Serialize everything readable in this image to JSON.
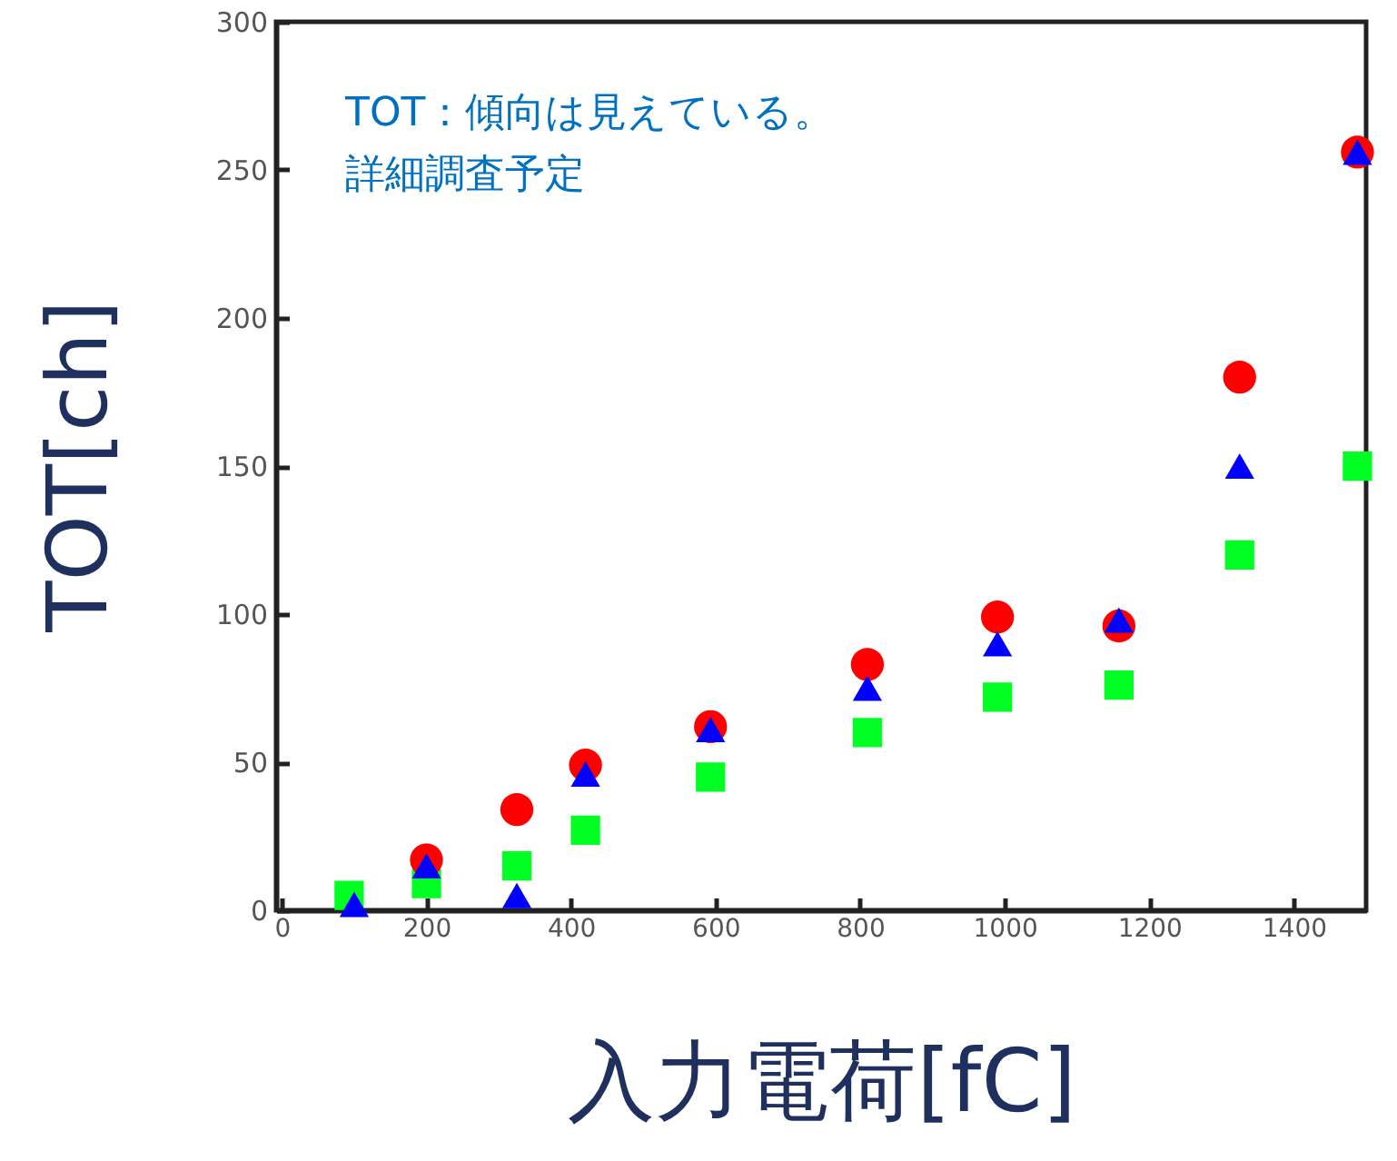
{
  "chart_data": {
    "type": "scatter",
    "xlabel": "入力電荷[fC]",
    "ylabel": "TOT[ch]",
    "annotations": [
      "TOT：傾向は見えている。",
      "詳細調査予定"
    ],
    "xlim": [
      -8,
      1500
    ],
    "xticks": [
      0,
      200,
      400,
      600,
      800,
      1000,
      1200,
      1400
    ],
    "ylim": [
      0,
      300
    ],
    "yticks": [
      0,
      50,
      100,
      150,
      200,
      250,
      300
    ],
    "grid": false,
    "series": [
      {
        "color": "#00ff22",
        "marker": "square",
        "x": [
          93,
          200,
          325,
          420,
          593,
          810,
          990,
          1158,
          1325,
          1488
        ],
        "values": [
          5,
          9,
          15,
          27,
          45,
          60,
          72,
          76,
          120,
          150
        ]
      },
      {
        "color": "#ff0000",
        "marker": "circle",
        "x": [
          200,
          325,
          420,
          593,
          810,
          990,
          1158,
          1325,
          1488
        ],
        "values": [
          17,
          34,
          49,
          62,
          83,
          99,
          96,
          180,
          256
        ]
      },
      {
        "color": "#0000ff",
        "marker": "triangle",
        "x": [
          100,
          200,
          325,
          420,
          593,
          810,
          990,
          1158,
          1325,
          1488
        ],
        "values": [
          2,
          15,
          5,
          46,
          61,
          75,
          90,
          98,
          150,
          256
        ]
      }
    ]
  }
}
